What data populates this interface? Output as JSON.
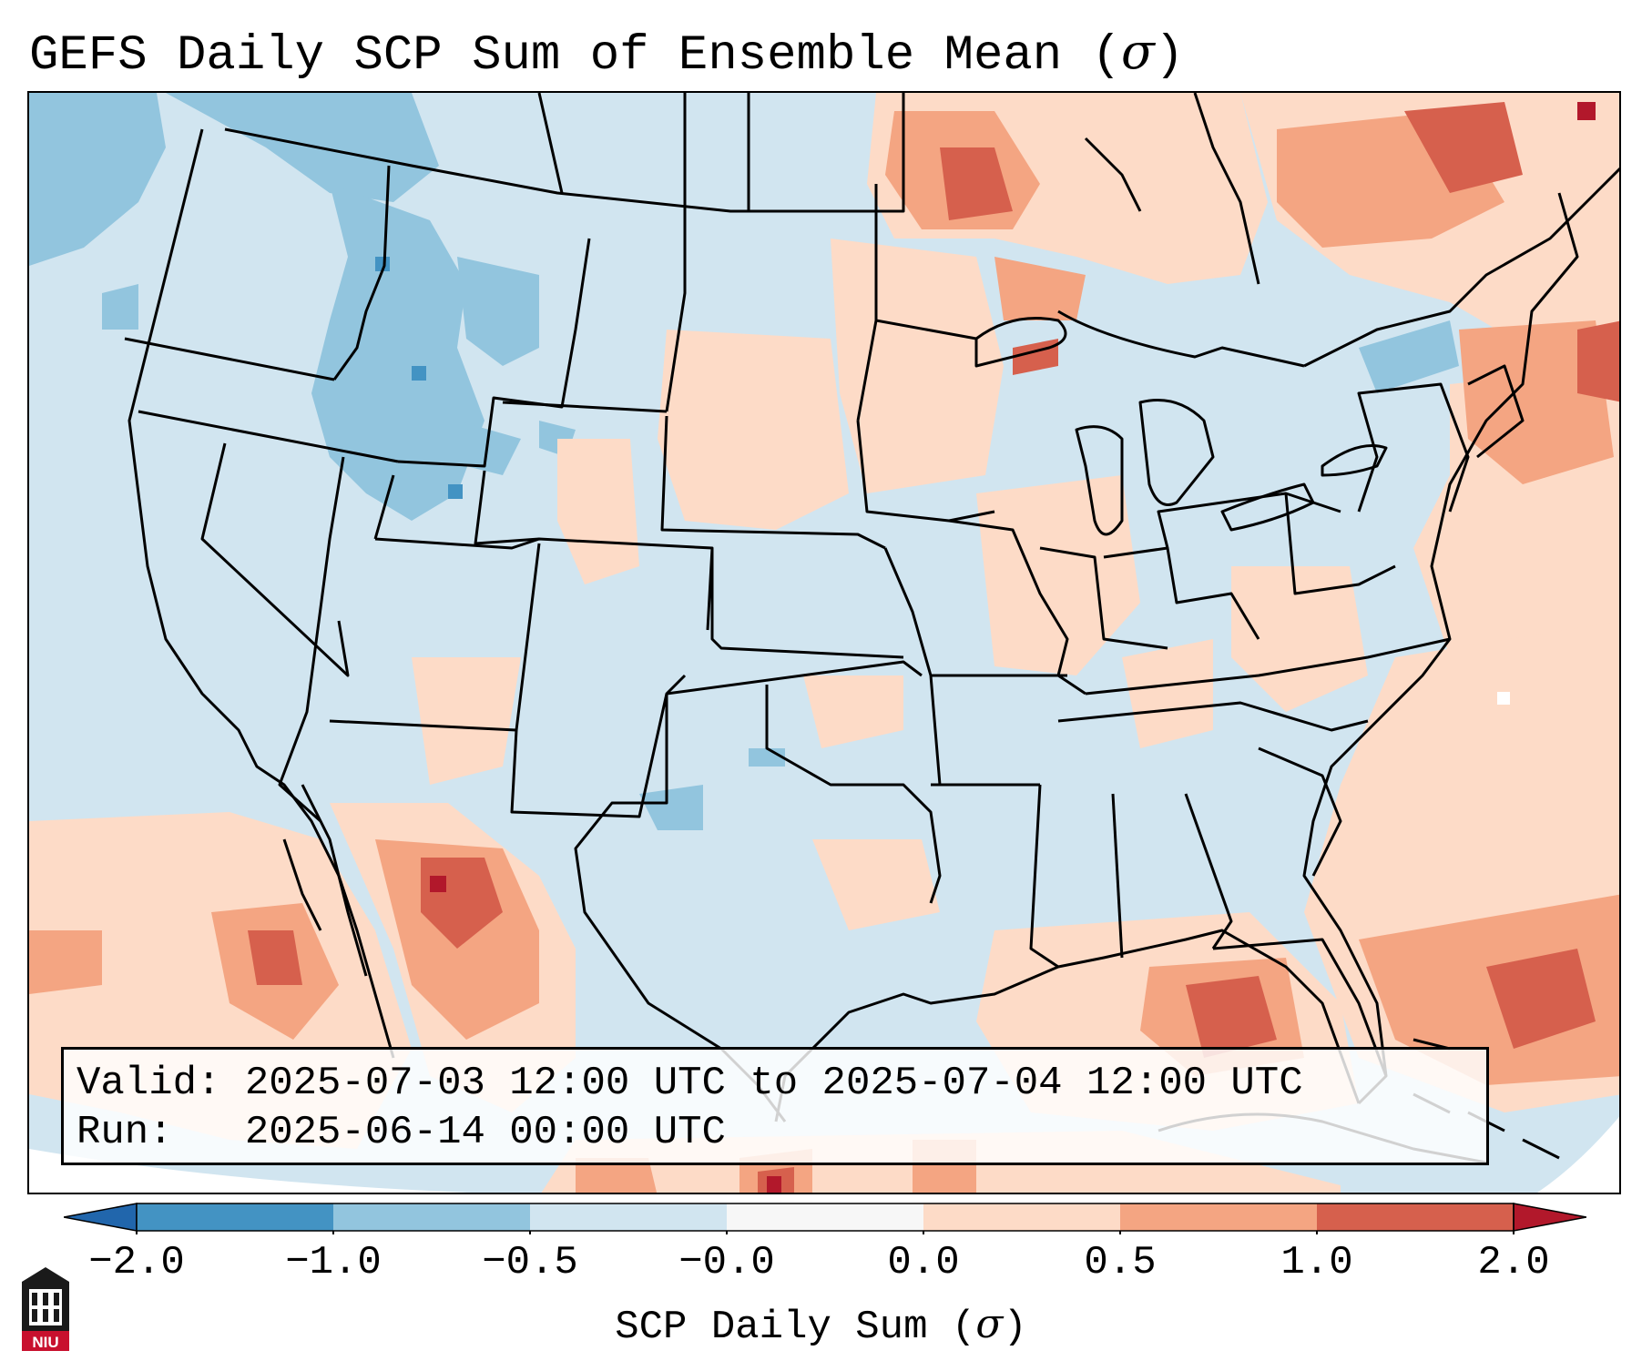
{
  "title": {
    "text": "GEFS Daily SCP Sum of Ensemble Mean (",
    "symbol": "σ",
    "close": ")"
  },
  "map": {
    "region": "CONUS",
    "variable": "SCP Daily Sum (σ)",
    "background_color": "#d1e5f0",
    "border_color": "#000000"
  },
  "infobox": {
    "valid_line": "Valid: 2025-07-03 12:00 UTC to 2025-07-04 12:00 UTC",
    "run_line": "Run:   2025-06-14 00:00 UTC"
  },
  "colorbar": {
    "label_text": "SCP Daily Sum (",
    "label_symbol": "σ",
    "label_close": ")",
    "ticks": [
      "−2.0",
      "−1.0",
      "−0.5",
      "−0.0",
      "0.0",
      "0.5",
      "1.0",
      "2.0"
    ],
    "colors": [
      "#4393c3",
      "#92c5de",
      "#d1e5f0",
      "#f7f7f7",
      "#fddbc7",
      "#f4a582",
      "#d6604d"
    ],
    "extend_low_color": "#2166ac",
    "extend_high_color": "#b2182b"
  },
  "logo": {
    "text": "NIU",
    "icon": "university-building-icon",
    "color": "#c8102e"
  }
}
